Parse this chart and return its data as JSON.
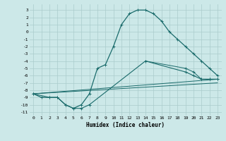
{
  "xlabel": "Humidex (Indice chaleur)",
  "bg_color": "#cce8e8",
  "grid_color": "#aacccc",
  "line_color": "#1a6b6b",
  "xlim": [
    -0.5,
    23.5
  ],
  "ylim": [
    -11.5,
    3.8
  ],
  "xticks": [
    0,
    1,
    2,
    3,
    4,
    5,
    6,
    7,
    8,
    9,
    10,
    11,
    12,
    13,
    14,
    15,
    16,
    17,
    18,
    19,
    20,
    21,
    22,
    23
  ],
  "yticks": [
    3,
    2,
    1,
    0,
    -1,
    -2,
    -3,
    -4,
    -5,
    -6,
    -7,
    -8,
    -9,
    -10,
    -11
  ],
  "line1_x": [
    0,
    1,
    2,
    3,
    4,
    5,
    6,
    7,
    8,
    9,
    10,
    11,
    12,
    13,
    14,
    15,
    16,
    17,
    18,
    19,
    20,
    21,
    22,
    23
  ],
  "line1_y": [
    -8.5,
    -9,
    -9,
    -9,
    -10,
    -10.5,
    -10,
    -8.5,
    -5,
    -4.5,
    -2,
    1,
    2.5,
    3,
    3,
    2.5,
    1.5,
    0,
    -1,
    -2,
    -3,
    -4,
    -5,
    -6
  ],
  "line2_x": [
    0,
    23
  ],
  "line2_y": [
    -8.5,
    -6.5
  ],
  "line3_x": [
    0,
    23
  ],
  "line3_y": [
    -8.5,
    -7.0
  ],
  "line3_pts_x": [
    14,
    19,
    20,
    21,
    22,
    23
  ],
  "line3_pts_y": [
    -4,
    -5,
    -5.5,
    -6.5,
    -6.5,
    -6.5
  ],
  "line4_x": [
    0,
    2,
    3,
    4,
    5,
    6,
    7,
    14,
    19,
    20,
    21,
    22,
    23
  ],
  "line4_y": [
    -8.5,
    -9,
    -9,
    -10,
    -10.5,
    -10.5,
    -10,
    -4,
    -5.5,
    -6.0,
    -6.5,
    -6.5,
    -6.5
  ]
}
